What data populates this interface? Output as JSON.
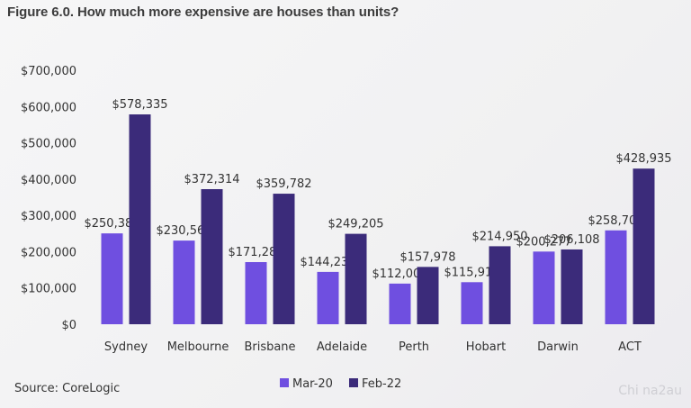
{
  "title": "Figure 6.0. How much more expensive are houses than units?",
  "source": "Source: CoreLogic",
  "watermark": "Chi na2au",
  "chart_data": {
    "type": "bar",
    "title": "Figure 6.0. How much more expensive are houses than units?",
    "xlabel": "",
    "ylabel": "",
    "ylim": [
      0,
      700000
    ],
    "yticks": [
      0,
      100000,
      200000,
      300000,
      400000,
      500000,
      600000,
      700000
    ],
    "ytick_labels": [
      "$0",
      "$100,000",
      "$200,000",
      "$300,000",
      "$400,000",
      "$500,000",
      "$600,000",
      "$700,000"
    ],
    "categories": [
      "Sydney",
      "Melbourne",
      "Brisbane",
      "Adelaide",
      "Perth",
      "Hobart",
      "Darwin",
      "ACT"
    ],
    "series": [
      {
        "name": "Mar-20",
        "color": "#6f4fe0",
        "values": [
          250384,
          230561,
          171287,
          144233,
          112006,
          115916,
          200277,
          258705
        ],
        "labels": [
          "$250,384",
          "$230,561",
          "$171,287",
          "$144,233",
          "$112,006",
          "$115,916",
          "$200,277",
          "$258,705"
        ]
      },
      {
        "name": "Feb-22",
        "color": "#3b2b7a",
        "values": [
          578335,
          372314,
          359782,
          249205,
          157978,
          214950,
          206108,
          428935
        ],
        "labels": [
          "$578,335",
          "$372,314",
          "$359,782",
          "$249,205",
          "$157,978",
          "$214,950",
          "$206,108",
          "$428,935"
        ]
      }
    ],
    "grid": false,
    "legend": "bottom-center"
  }
}
